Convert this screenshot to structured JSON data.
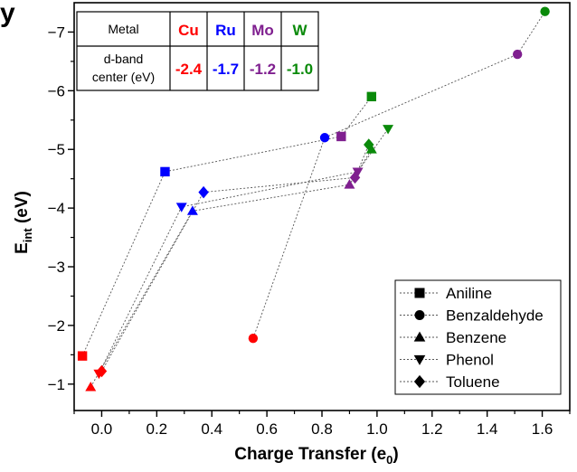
{
  "chart_data": {
    "type": "scatter",
    "panel_letter": "y",
    "xlabel": "Charge Transfer (e",
    "xlabel_sub": "0",
    "xlabel_tail": ")",
    "ylabel": "E",
    "ylabel_sub": "int",
    "ylabel_tail": " (eV)",
    "xlim": [
      -0.1,
      1.7
    ],
    "ylim": [
      -0.55,
      -7.5
    ],
    "y_inverted": true,
    "x_ticks": [
      0.0,
      0.2,
      0.4,
      0.6,
      0.8,
      1.0,
      1.2,
      1.4,
      1.6
    ],
    "x_tick_labels": [
      "0.0",
      "0.2",
      "0.4",
      "0.6",
      "0.8",
      "1.0",
      "1.2",
      "1.4",
      "1.6"
    ],
    "y_ticks": [
      -1,
      -2,
      -3,
      -4,
      -5,
      -6,
      -7
    ],
    "y_tick_labels": [
      "−1",
      "−2",
      "−3",
      "−4",
      "−5",
      "−6",
      "−7"
    ],
    "metal_colors": {
      "Cu": "#ff0000",
      "Ru": "#0000ff",
      "Mo": "#7f1f8f",
      "W": "#0a8a0a"
    },
    "metal_order": [
      "Cu",
      "Ru",
      "Mo",
      "W"
    ],
    "series": [
      {
        "name": "Aniline",
        "marker": "square",
        "points": [
          {
            "metal": "Cu",
            "x": -0.07,
            "y": -1.48
          },
          {
            "metal": "Ru",
            "x": 0.23,
            "y": -4.62
          },
          {
            "metal": "Mo",
            "x": 0.87,
            "y": -5.22
          },
          {
            "metal": "W",
            "x": 0.98,
            "y": -5.9
          }
        ]
      },
      {
        "name": "Benzaldehyde",
        "marker": "circle",
        "points": [
          {
            "metal": "Cu",
            "x": 0.55,
            "y": -1.78
          },
          {
            "metal": "Ru",
            "x": 0.81,
            "y": -5.2
          },
          {
            "metal": "Mo",
            "x": 1.51,
            "y": -6.62
          },
          {
            "metal": "W",
            "x": 1.61,
            "y": -7.35
          }
        ]
      },
      {
        "name": "Benzene",
        "marker": "triangle-up",
        "points": [
          {
            "metal": "Cu",
            "x": -0.04,
            "y": -0.95
          },
          {
            "metal": "Ru",
            "x": 0.33,
            "y": -3.95
          },
          {
            "metal": "Mo",
            "x": 0.9,
            "y": -4.4
          },
          {
            "metal": "W",
            "x": 0.98,
            "y": -5.0
          }
        ]
      },
      {
        "name": "Phenol",
        "marker": "triangle-down",
        "points": [
          {
            "metal": "Cu",
            "x": -0.01,
            "y": -1.18
          },
          {
            "metal": "Ru",
            "x": 0.29,
            "y": -4.02
          },
          {
            "metal": "Mo",
            "x": 0.93,
            "y": -4.62
          },
          {
            "metal": "W",
            "x": 1.04,
            "y": -5.35
          }
        ]
      },
      {
        "name": "Toluene",
        "marker": "diamond",
        "points": [
          {
            "metal": "Cu",
            "x": 0.0,
            "y": -1.22
          },
          {
            "metal": "Ru",
            "x": 0.37,
            "y": -4.27
          },
          {
            "metal": "Mo",
            "x": 0.92,
            "y": -4.52
          },
          {
            "metal": "W",
            "x": 0.97,
            "y": -5.08
          }
        ]
      }
    ],
    "legend_position": "bottom-right",
    "table": {
      "row1_label": "Metal",
      "row2_label_line1": "d-band",
      "row2_label_line2": "center (eV)",
      "metals": [
        "Cu",
        "Ru",
        "Mo",
        "W"
      ],
      "dband_values": [
        "-2.4",
        "-1.7",
        "-1.2",
        "-1.0"
      ]
    }
  }
}
